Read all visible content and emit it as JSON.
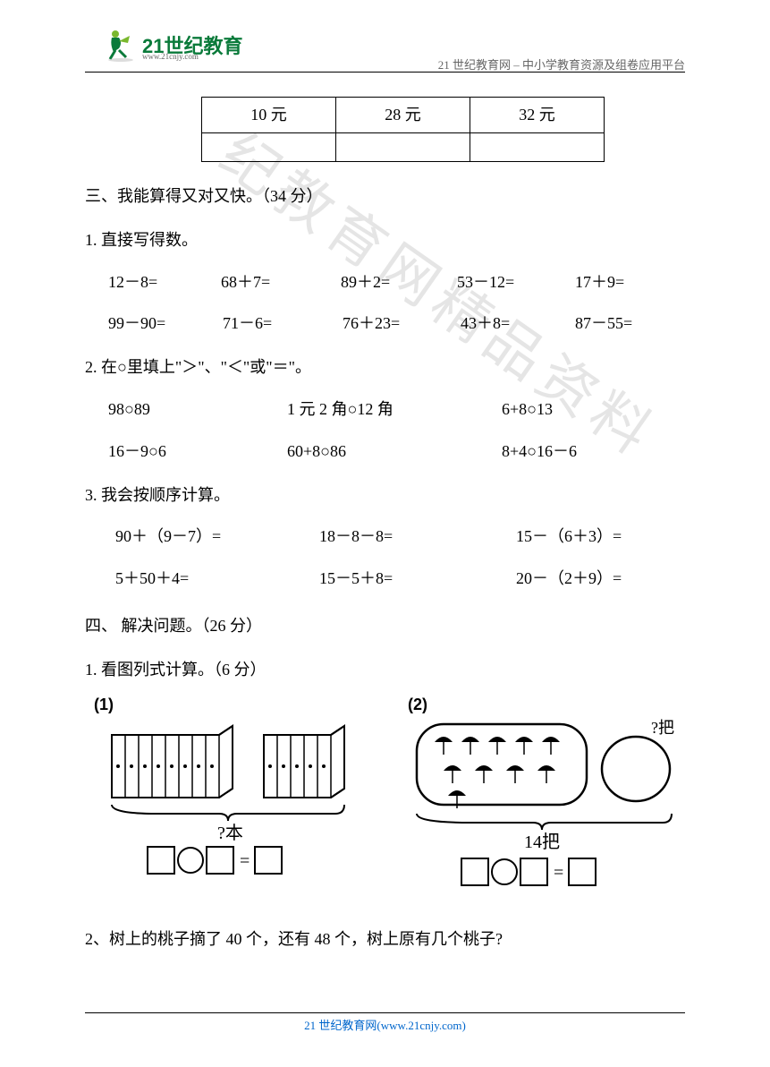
{
  "header": {
    "logo_main": "21世纪教育",
    "logo_sub": "www.21cnjy.com",
    "right_text": "21 世纪教育网  – 中小学教育资源及组卷应用平台"
  },
  "watermark": "纪教育网精品资料",
  "price_table": {
    "row1": [
      "10 元",
      "28 元",
      "32 元"
    ],
    "row2": [
      "",
      "",
      ""
    ]
  },
  "section3": {
    "title": "三、我能算得又对又快。（34 分）",
    "item1": {
      "label": "1. 直接写得数。",
      "row1": [
        "12－8=",
        "68＋7=",
        "89＋2=",
        "53－12=",
        "17＋9="
      ],
      "row2": [
        "99－90=",
        "71－6=",
        "76＋23=",
        "43＋8=",
        "87－55="
      ],
      "col_widths_r1": [
        126,
        134,
        130,
        132,
        100
      ],
      "col_widths_r2": [
        128,
        134,
        132,
        128,
        100
      ]
    },
    "item2": {
      "label": "2.  在○里填上\"＞\"、\"＜\"或\"＝\"。",
      "row1": [
        "98○89",
        "1 元 2 角○12 角",
        "6+8○13"
      ],
      "row2": [
        "16－9○6",
        "60+8○86",
        "8+4○16－6"
      ],
      "col_widths_r1": [
        200,
        240,
        150
      ],
      "col_widths_r2": [
        200,
        240,
        150
      ]
    },
    "item3": {
      "label": "3. 我会按顺序计算。",
      "row1": [
        "90＋（9－7）=",
        "18－8－8=",
        "15－（6＋3）="
      ],
      "row2": [
        "5＋50＋4=",
        "15－5＋8=",
        "20－（2＋9）="
      ],
      "col_widths_r1": [
        228,
        220,
        160
      ],
      "col_widths_r2": [
        228,
        220,
        160
      ],
      "indent_r1": 34,
      "indent_r2": 34
    }
  },
  "section4": {
    "title": "四、 解决问题。（26 分）",
    "item1": {
      "label": "1. 看图列式计算。（6 分）",
      "fig1_label": "(1)",
      "fig1_question": "?本",
      "fig2_label": "(2)",
      "fig2_total": "14把",
      "fig2_question": "?把"
    },
    "item2": {
      "label": "2、树上的桃子摘了 40 个，还有 48 个，树上原有几个桃子?"
    }
  },
  "footer": {
    "text": "21 世纪教育网(www.21cnjy.com)"
  },
  "colors": {
    "logo_green": "#0a7a3a",
    "footer_link": "#0066cc",
    "watermark_gray": "rgba(180,180,180,0.35)"
  }
}
